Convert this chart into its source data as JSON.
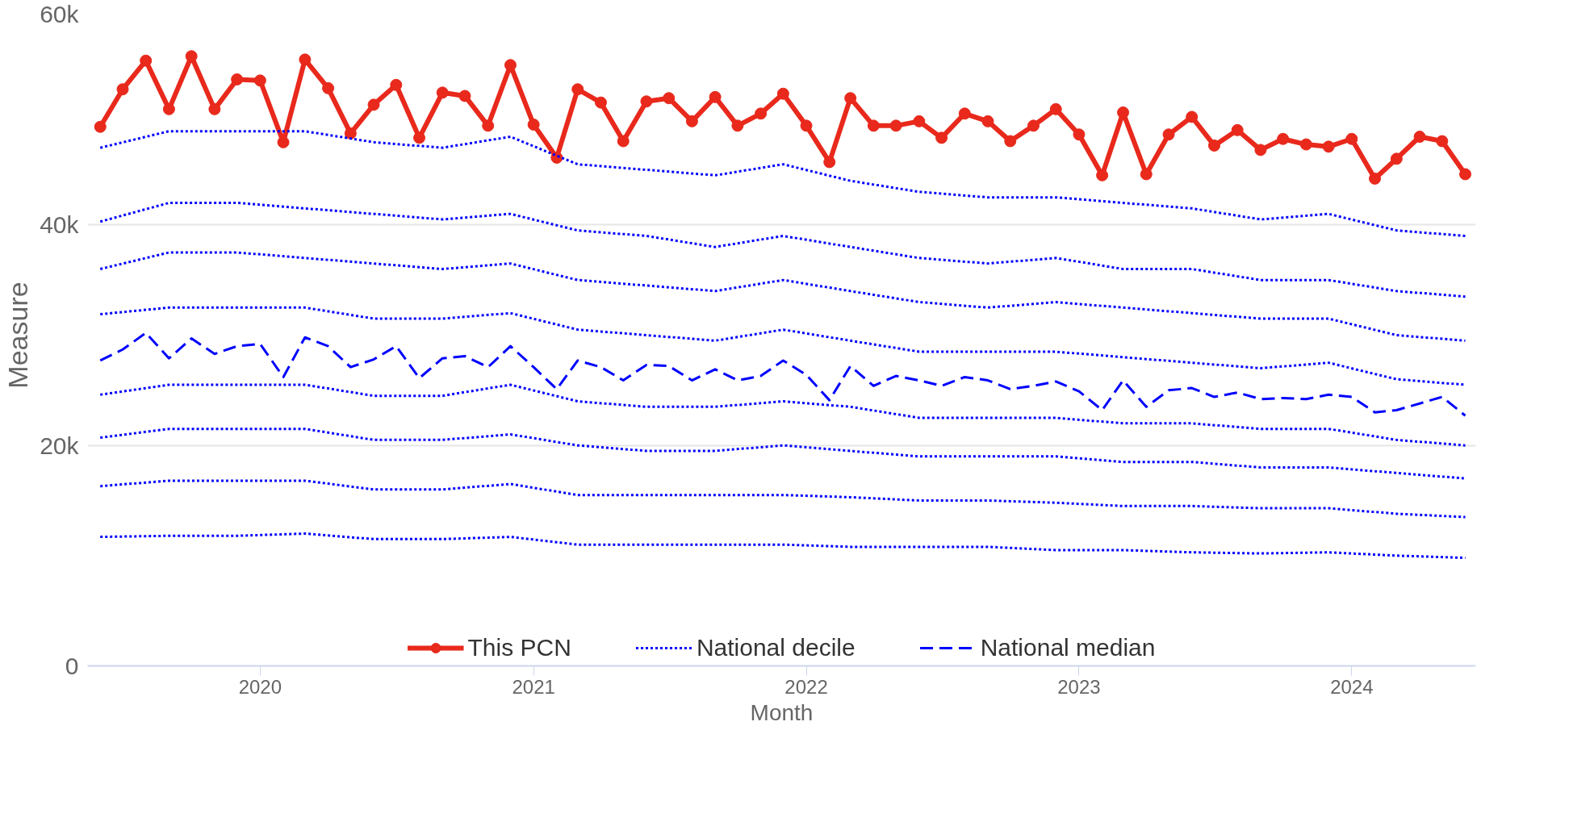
{
  "chart_data": {
    "type": "line",
    "xlabel": "Month",
    "ylabel": "Measure",
    "x": [
      "2019-06",
      "2019-07",
      "2019-08",
      "2019-09",
      "2019-10",
      "2019-11",
      "2019-12",
      "2020-01",
      "2020-02",
      "2020-03",
      "2020-04",
      "2020-05",
      "2020-06",
      "2020-07",
      "2020-08",
      "2020-09",
      "2020-10",
      "2020-11",
      "2020-12",
      "2021-01",
      "2021-02",
      "2021-03",
      "2021-04",
      "2021-05",
      "2021-06",
      "2021-07",
      "2021-08",
      "2021-09",
      "2021-10",
      "2021-11",
      "2021-12",
      "2022-01",
      "2022-02",
      "2022-03",
      "2022-04",
      "2022-05",
      "2022-06",
      "2022-07",
      "2022-08",
      "2022-09",
      "2022-10",
      "2022-11",
      "2022-12",
      "2023-01",
      "2023-02",
      "2023-03",
      "2023-04",
      "2023-05",
      "2023-06",
      "2023-07",
      "2023-08",
      "2023-09",
      "2023-10",
      "2023-11",
      "2023-12",
      "2024-01",
      "2024-02",
      "2024-03",
      "2024-04",
      "2024-05",
      "2024-06"
    ],
    "series": [
      {
        "name": "This PCN",
        "color": "#e8291c",
        "marker": "circle",
        "line_style": "solid",
        "values": [
          48900,
          52300,
          54900,
          50500,
          55300,
          50500,
          53200,
          53100,
          47500,
          55000,
          52400,
          48300,
          50900,
          52700,
          47900,
          52000,
          51700,
          49000,
          54500,
          49100,
          46100,
          52300,
          51100,
          47600,
          51200,
          51500,
          49400,
          51600,
          49000,
          50100,
          51900,
          49000,
          45700,
          51500,
          49000,
          49000,
          49400,
          47900,
          50100,
          49400,
          47600,
          49000,
          50500,
          48200,
          44500,
          50200,
          44600,
          48200,
          49800,
          47200,
          48600,
          46800,
          47800,
          47300,
          47100,
          47800,
          44200,
          46000,
          48000,
          47600,
          44600
        ]
      },
      {
        "name": "National decile",
        "color": "#0000ff",
        "marker": "none",
        "line_style": "dotted",
        "x": [
          "2019-06",
          "2019-09",
          "2019-12",
          "2020-03",
          "2020-06",
          "2020-09",
          "2020-12",
          "2021-03",
          "2021-06",
          "2021-09",
          "2021-12",
          "2022-03",
          "2022-06",
          "2022-09",
          "2022-12",
          "2023-03",
          "2023-06",
          "2023-09",
          "2023-12",
          "2024-03",
          "2024-06"
        ],
        "values": [
          47000,
          48500,
          48500,
          48500,
          47500,
          47000,
          48000,
          45500,
          45000,
          44500,
          45500,
          44000,
          43000,
          42500,
          42500,
          42000,
          41500,
          40500,
          41000,
          39500,
          39000
        ]
      },
      {
        "color": "#0000ff",
        "marker": "none",
        "line_style": "dotted",
        "x": [
          "2019-06",
          "2019-09",
          "2019-12",
          "2020-03",
          "2020-06",
          "2020-09",
          "2020-12",
          "2021-03",
          "2021-06",
          "2021-09",
          "2021-12",
          "2022-03",
          "2022-06",
          "2022-09",
          "2022-12",
          "2023-03",
          "2023-06",
          "2023-09",
          "2023-12",
          "2024-03",
          "2024-06"
        ],
        "values": [
          40300,
          42000,
          42000,
          41500,
          41000,
          40500,
          41000,
          39500,
          39000,
          38000,
          39000,
          38000,
          37000,
          36500,
          37000,
          36000,
          36000,
          35000,
          35000,
          34000,
          33500
        ]
      },
      {
        "color": "#0000ff",
        "marker": "none",
        "line_style": "dotted",
        "x": [
          "2019-06",
          "2019-09",
          "2019-12",
          "2020-03",
          "2020-06",
          "2020-09",
          "2020-12",
          "2021-03",
          "2021-06",
          "2021-09",
          "2021-12",
          "2022-03",
          "2022-06",
          "2022-09",
          "2022-12",
          "2023-03",
          "2023-06",
          "2023-09",
          "2023-12",
          "2024-03",
          "2024-06"
        ],
        "values": [
          36000,
          37500,
          37500,
          37000,
          36500,
          36000,
          36500,
          35000,
          34500,
          34000,
          35000,
          34000,
          33000,
          32500,
          33000,
          32500,
          32000,
          31500,
          31500,
          30000,
          29500
        ]
      },
      {
        "color": "#0000ff",
        "marker": "none",
        "line_style": "dotted",
        "x": [
          "2019-06",
          "2019-09",
          "2019-12",
          "2020-03",
          "2020-06",
          "2020-09",
          "2020-12",
          "2021-03",
          "2021-06",
          "2021-09",
          "2021-12",
          "2022-03",
          "2022-06",
          "2022-09",
          "2022-12",
          "2023-03",
          "2023-06",
          "2023-09",
          "2023-12",
          "2024-03",
          "2024-06"
        ],
        "values": [
          31900,
          32500,
          32500,
          32500,
          31500,
          31500,
          32000,
          30500,
          30000,
          29500,
          30500,
          29500,
          28500,
          28500,
          28500,
          28000,
          27500,
          27000,
          27500,
          26000,
          25500
        ]
      },
      {
        "name": "National median",
        "color": "#0000ff",
        "marker": "none",
        "line_style": "dashed",
        "values": [
          27700,
          28700,
          30200,
          27900,
          29700,
          28300,
          29000,
          29200,
          26200,
          29800,
          29000,
          27100,
          27800,
          29000,
          26100,
          27900,
          28100,
          27100,
          29000,
          27100,
          25100,
          27700,
          27100,
          25900,
          27300,
          27200,
          25900,
          26900,
          25900,
          26300,
          27700,
          26400,
          24100,
          27200,
          25400,
          26300,
          25900,
          25400,
          26200,
          25900,
          25100,
          25400,
          25800,
          24900,
          23200,
          25900,
          23500,
          25000,
          25200,
          24400,
          24800,
          24200,
          24300,
          24200,
          24600,
          24400,
          23000,
          23200,
          23800,
          24400,
          22700
        ]
      },
      {
        "color": "#0000ff",
        "marker": "none",
        "line_style": "dotted",
        "x": [
          "2019-06",
          "2019-09",
          "2019-12",
          "2020-03",
          "2020-06",
          "2020-09",
          "2020-12",
          "2021-03",
          "2021-06",
          "2021-09",
          "2021-12",
          "2022-03",
          "2022-06",
          "2022-09",
          "2022-12",
          "2023-03",
          "2023-06",
          "2023-09",
          "2023-12",
          "2024-03",
          "2024-06"
        ],
        "values": [
          24600,
          25500,
          25500,
          25500,
          24500,
          24500,
          25500,
          24000,
          23500,
          23500,
          24000,
          23500,
          22500,
          22500,
          22500,
          22000,
          22000,
          21500,
          21500,
          20500,
          20000
        ]
      },
      {
        "color": "#0000ff",
        "marker": "none",
        "line_style": "dotted",
        "x": [
          "2019-06",
          "2019-09",
          "2019-12",
          "2020-03",
          "2020-06",
          "2020-09",
          "2020-12",
          "2021-03",
          "2021-06",
          "2021-09",
          "2021-12",
          "2022-03",
          "2022-06",
          "2022-09",
          "2022-12",
          "2023-03",
          "2023-06",
          "2023-09",
          "2023-12",
          "2024-03",
          "2024-06"
        ],
        "values": [
          20700,
          21500,
          21500,
          21500,
          20500,
          20500,
          21000,
          20000,
          19500,
          19500,
          20000,
          19500,
          19000,
          19000,
          19000,
          18500,
          18500,
          18000,
          18000,
          17500,
          17000
        ]
      },
      {
        "color": "#0000ff",
        "marker": "none",
        "line_style": "dotted",
        "x": [
          "2019-06",
          "2019-09",
          "2019-12",
          "2020-03",
          "2020-06",
          "2020-09",
          "2020-12",
          "2021-03",
          "2021-06",
          "2021-09",
          "2021-12",
          "2022-03",
          "2022-06",
          "2022-09",
          "2022-12",
          "2023-03",
          "2023-06",
          "2023-09",
          "2023-12",
          "2024-03",
          "2024-06"
        ],
        "values": [
          16300,
          16800,
          16800,
          16800,
          16000,
          16000,
          16500,
          15500,
          15500,
          15500,
          15500,
          15300,
          15000,
          15000,
          14800,
          14500,
          14500,
          14300,
          14300,
          13800,
          13500
        ]
      },
      {
        "color": "#0000ff",
        "marker": "none",
        "line_style": "dotted",
        "x": [
          "2019-06",
          "2019-09",
          "2019-12",
          "2020-03",
          "2020-06",
          "2020-09",
          "2020-12",
          "2021-03",
          "2021-06",
          "2021-09",
          "2021-12",
          "2022-03",
          "2022-06",
          "2022-09",
          "2022-12",
          "2023-03",
          "2023-06",
          "2023-09",
          "2023-12",
          "2024-03",
          "2024-06"
        ],
        "values": [
          11700,
          11800,
          11800,
          12000,
          11500,
          11500,
          11700,
          11000,
          11000,
          11000,
          11000,
          10800,
          10800,
          10800,
          10500,
          10500,
          10300,
          10200,
          10300,
          10000,
          9800
        ]
      }
    ],
    "xlim": [
      "2019-05-15",
      "2024-06-15"
    ],
    "xticks": [
      {
        "value": "2020-01",
        "label": "2020"
      },
      {
        "value": "2021-01",
        "label": "2021"
      },
      {
        "value": "2022-01",
        "label": "2022"
      },
      {
        "value": "2023-01",
        "label": "2023"
      },
      {
        "value": "2024-01",
        "label": "2024"
      }
    ],
    "ylim": [
      0,
      60000
    ],
    "yticks": [
      {
        "value": 0,
        "label": "0"
      },
      {
        "value": 20000,
        "label": "20k"
      },
      {
        "value": 40000,
        "label": "40k"
      },
      {
        "value": 60000,
        "label": "60k"
      }
    ],
    "grid": "y",
    "legend": "bottom"
  }
}
